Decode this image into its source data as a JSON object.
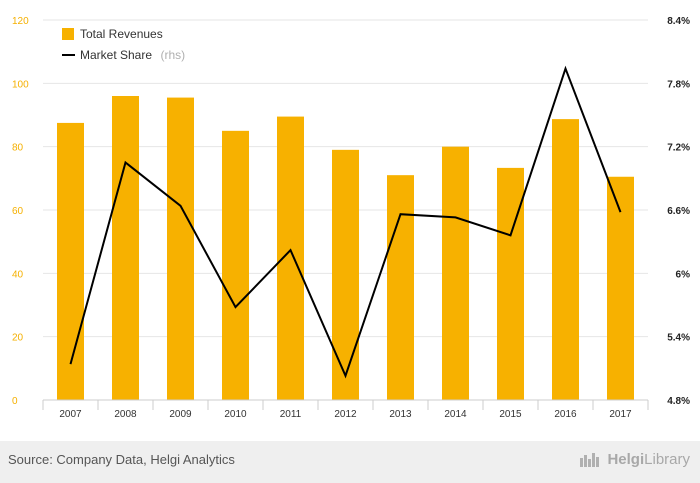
{
  "chart_data": {
    "type": "bar",
    "categories": [
      "2007",
      "2008",
      "2009",
      "2010",
      "2011",
      "2012",
      "2013",
      "2014",
      "2015",
      "2016",
      "2017"
    ],
    "series": [
      {
        "name": "Total Revenues",
        "kind": "bar",
        "axis": "left",
        "values": [
          87.5,
          96,
          95.5,
          85,
          89.5,
          79,
          71,
          80,
          73.3,
          88.7,
          70.5
        ]
      },
      {
        "name": "Market Share",
        "kind": "line",
        "axis": "right",
        "values": [
          5.14,
          7.05,
          6.64,
          5.68,
          6.22,
          5.03,
          6.56,
          6.53,
          6.36,
          7.94,
          6.58
        ]
      }
    ],
    "ylim_left": [
      0,
      120
    ],
    "yticks_left": [
      "0",
      "20",
      "40",
      "60",
      "80",
      "100",
      "120"
    ],
    "ylim_right": [
      4.8,
      8.4
    ],
    "yticks_right": [
      "4.8%",
      "5.4%",
      "6%",
      "6.6%",
      "7.2%",
      "7.8%",
      "8.4%"
    ],
    "legend": {
      "placement": "top-left",
      "items": [
        "Total Revenues",
        "Market Share"
      ],
      "rhs_suffix": "(rhs)"
    },
    "grid": "horizontal",
    "colors": {
      "bar": "#f7b100",
      "line": "#000000",
      "grid": "#e6e6e6"
    }
  },
  "footer": {
    "source": "Source: Company Data, Helgi Analytics",
    "brand_bold": "Helgi",
    "brand_rest": "Library"
  }
}
